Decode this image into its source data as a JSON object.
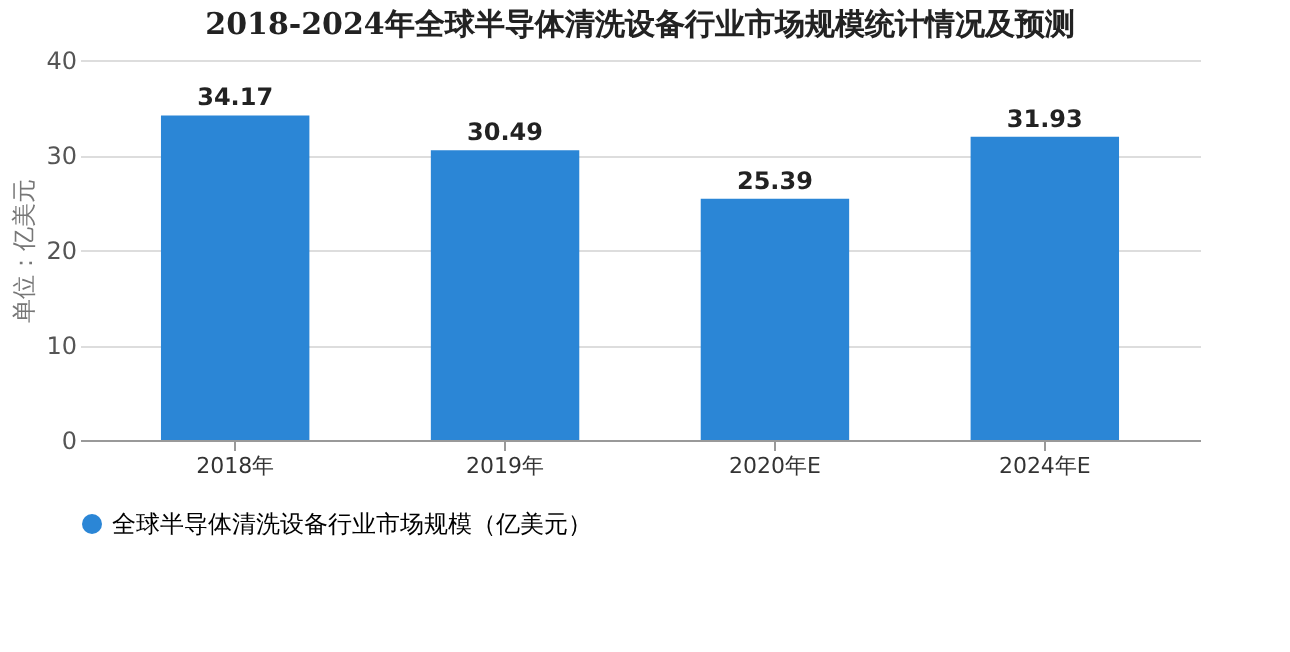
{
  "chart_data": {
    "type": "bar",
    "title": "2018-2024年全球半导体清洗设备行业市场规模统计情况及预测",
    "ylabel": "单位：亿美元",
    "categories": [
      "2018年",
      "2019年",
      "2020年E",
      "2024年E"
    ],
    "series": [
      {
        "name": "全球半导体清洗设备行业市场规模（亿美元）",
        "color": "#2b86d6",
        "values": [
          34.17,
          30.49,
          25.39,
          31.93
        ]
      }
    ],
    "ylim": [
      0,
      40
    ],
    "yticks": [
      0,
      10,
      20,
      30,
      40
    ],
    "grid": "y",
    "legend": "bottom",
    "data_labels": true,
    "marker": "circle"
  }
}
